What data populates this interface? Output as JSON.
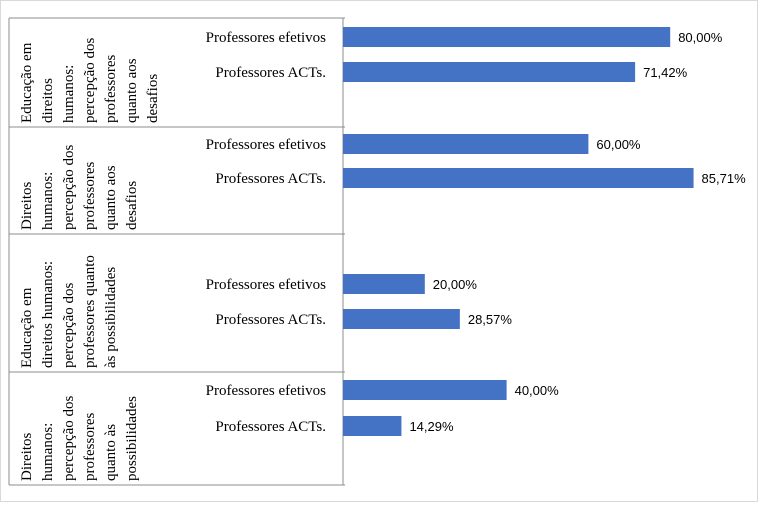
{
  "chart_data": {
    "type": "bar",
    "orientation": "horizontal",
    "xlim": [
      0,
      100
    ],
    "grid": false,
    "legend": "none",
    "bar_color": "#4472C4",
    "groups": [
      {
        "label_lines": [
          "Educação em",
          "direitos",
          "humanos:",
          "percepção dos",
          "professores",
          "quanto aos",
          "desafios"
        ],
        "categories": [
          "Professores efetivos",
          "Professores ACTs."
        ],
        "values": [
          80.0,
          71.42
        ],
        "value_labels": [
          "80,00%",
          "71,42%"
        ]
      },
      {
        "label_lines": [
          "Direitos",
          "humanos:",
          "percepção dos",
          "professores",
          "quanto aos",
          "desafios"
        ],
        "categories": [
          "Professores efetivos",
          "Professores ACTs."
        ],
        "values": [
          60.0,
          85.71
        ],
        "value_labels": [
          "60,00%",
          "85,71%"
        ]
      },
      {
        "label_lines": [
          "Educação em",
          "direitos humanos:",
          "percepção dos",
          "professores quanto",
          "às possibilidades"
        ],
        "categories": [
          "Professores efetivos",
          "Professores ACTs."
        ],
        "values": [
          20.0,
          28.57
        ],
        "value_labels": [
          "20,00%",
          "28,57%"
        ]
      },
      {
        "label_lines": [
          "Direitos",
          "humanos:",
          "percepção dos",
          "professores",
          "quanto às",
          "possibilidades"
        ],
        "categories": [
          "Professores efetivos",
          "Professores ACTs."
        ],
        "values": [
          40.0,
          14.29
        ],
        "value_labels": [
          "40,00%",
          "14,29%"
        ]
      }
    ]
  }
}
